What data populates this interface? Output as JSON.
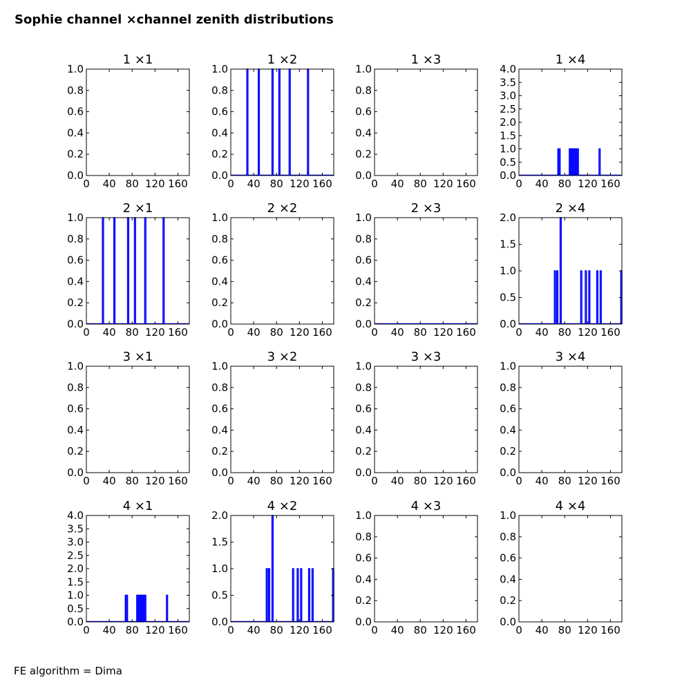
{
  "figure": {
    "title": "Sophie channel ×channel zenith distributions",
    "footer": "FE algorithm = Dima"
  },
  "colors": {
    "line": "#0000ff",
    "axes": "#000000",
    "background": "#ffffff"
  },
  "chart_data": [
    {
      "type": "bar",
      "title": "1 ×1",
      "xlim": [
        0,
        180
      ],
      "ylim": [
        0,
        1
      ],
      "xticks": [
        "0",
        "40",
        "80",
        "120",
        "160"
      ],
      "yticks": [
        "0.0",
        "0.2",
        "0.4",
        "0.6",
        "0.8",
        "1.0"
      ],
      "bars": []
    },
    {
      "type": "bar",
      "title": "1 ×2",
      "xlim": [
        0,
        180
      ],
      "ylim": [
        0,
        1
      ],
      "xticks": [
        "0",
        "40",
        "80",
        "120",
        "160"
      ],
      "yticks": [
        "0.0",
        "0.2",
        "0.4",
        "0.6",
        "0.8",
        "1.0"
      ],
      "bars": [
        {
          "x": 28,
          "y": 1
        },
        {
          "x": 48,
          "y": 1
        },
        {
          "x": 72,
          "y": 1
        },
        {
          "x": 84,
          "y": 1
        },
        {
          "x": 102,
          "y": 1
        },
        {
          "x": 134,
          "y": 1
        }
      ]
    },
    {
      "type": "bar",
      "title": "1 ×3",
      "xlim": [
        0,
        180
      ],
      "ylim": [
        0,
        1
      ],
      "xticks": [
        "0",
        "40",
        "80",
        "120",
        "160"
      ],
      "yticks": [
        "0.0",
        "0.2",
        "0.4",
        "0.6",
        "0.8",
        "1.0"
      ],
      "bars": []
    },
    {
      "type": "bar",
      "title": "1 ×4",
      "xlim": [
        0,
        180
      ],
      "ylim": [
        0,
        4
      ],
      "xticks": [
        "0",
        "40",
        "80",
        "120",
        "160"
      ],
      "yticks": [
        "0.0",
        "0.5",
        "1.0",
        "1.5",
        "2.0",
        "2.5",
        "3.0",
        "3.5",
        "4.0"
      ],
      "bars": [
        {
          "x": 68,
          "y": 1
        },
        {
          "x": 70,
          "y": 1
        },
        {
          "x": 88,
          "y": 1
        },
        {
          "x": 90,
          "y": 1
        },
        {
          "x": 92,
          "y": 1
        },
        {
          "x": 94,
          "y": 1
        },
        {
          "x": 96,
          "y": 1
        },
        {
          "x": 98,
          "y": 1
        },
        {
          "x": 100,
          "y": 1
        },
        {
          "x": 102,
          "y": 1
        },
        {
          "x": 140,
          "y": 1
        }
      ]
    },
    {
      "type": "bar",
      "title": "2 ×1",
      "xlim": [
        0,
        180
      ],
      "ylim": [
        0,
        1
      ],
      "xticks": [
        "0",
        "40",
        "80",
        "120",
        "160"
      ],
      "yticks": [
        "0.0",
        "0.2",
        "0.4",
        "0.6",
        "0.8",
        "1.0"
      ],
      "bars": [
        {
          "x": 28,
          "y": 1
        },
        {
          "x": 48,
          "y": 1
        },
        {
          "x": 72,
          "y": 1
        },
        {
          "x": 84,
          "y": 1
        },
        {
          "x": 102,
          "y": 1
        },
        {
          "x": 134,
          "y": 1
        }
      ]
    },
    {
      "type": "bar",
      "title": "2 ×2",
      "xlim": [
        0,
        180
      ],
      "ylim": [
        0,
        1
      ],
      "xticks": [
        "0",
        "40",
        "80",
        "120",
        "160"
      ],
      "yticks": [
        "0.0",
        "0.2",
        "0.4",
        "0.6",
        "0.8",
        "1.0"
      ],
      "bars": []
    },
    {
      "type": "bar",
      "title": "2 ×3",
      "xlim": [
        0,
        180
      ],
      "ylim": [
        0,
        1
      ],
      "xticks": [
        "0",
        "40",
        "80",
        "120",
        "160"
      ],
      "yticks": [
        "0.0",
        "0.2",
        "0.4",
        "0.6",
        "0.8",
        "1.0"
      ],
      "bars": []
    },
    {
      "type": "bar",
      "title": "2 ×4",
      "xlim": [
        0,
        180
      ],
      "ylim": [
        0,
        2
      ],
      "xticks": [
        "0",
        "40",
        "80",
        "120",
        "160"
      ],
      "yticks": [
        "0.0",
        "0.5",
        "1.0",
        "1.5",
        "2.0"
      ],
      "bars": [
        {
          "x": 62,
          "y": 1
        },
        {
          "x": 66,
          "y": 1
        },
        {
          "x": 72,
          "y": 2
        },
        {
          "x": 108,
          "y": 1
        },
        {
          "x": 116,
          "y": 1
        },
        {
          "x": 122,
          "y": 1
        },
        {
          "x": 136,
          "y": 1
        },
        {
          "x": 142,
          "y": 1
        },
        {
          "x": 178,
          "y": 1
        }
      ]
    },
    {
      "type": "bar",
      "title": "3 ×1",
      "xlim": [
        0,
        180
      ],
      "ylim": [
        0,
        1
      ],
      "xticks": [
        "0",
        "40",
        "80",
        "120",
        "160"
      ],
      "yticks": [
        "0.0",
        "0.2",
        "0.4",
        "0.6",
        "0.8",
        "1.0"
      ],
      "bars": []
    },
    {
      "type": "bar",
      "title": "3 ×2",
      "xlim": [
        0,
        180
      ],
      "ylim": [
        0,
        1
      ],
      "xticks": [
        "0",
        "40",
        "80",
        "120",
        "160"
      ],
      "yticks": [
        "0.0",
        "0.2",
        "0.4",
        "0.6",
        "0.8",
        "1.0"
      ],
      "bars": []
    },
    {
      "type": "bar",
      "title": "3 ×3",
      "xlim": [
        0,
        180
      ],
      "ylim": [
        0,
        1
      ],
      "xticks": [
        "0",
        "40",
        "80",
        "120",
        "160"
      ],
      "yticks": [
        "0.0",
        "0.2",
        "0.4",
        "0.6",
        "0.8",
        "1.0"
      ],
      "bars": []
    },
    {
      "type": "bar",
      "title": "3 ×4",
      "xlim": [
        0,
        180
      ],
      "ylim": [
        0,
        1
      ],
      "xticks": [
        "0",
        "40",
        "80",
        "120",
        "160"
      ],
      "yticks": [
        "0.0",
        "0.2",
        "0.4",
        "0.6",
        "0.8",
        "1.0"
      ],
      "bars": []
    },
    {
      "type": "bar",
      "title": "4 ×1",
      "xlim": [
        0,
        180
      ],
      "ylim": [
        0,
        4
      ],
      "xticks": [
        "0",
        "40",
        "80",
        "120",
        "160"
      ],
      "yticks": [
        "0.0",
        "0.5",
        "1.0",
        "1.5",
        "2.0",
        "2.5",
        "3.0",
        "3.5",
        "4.0"
      ],
      "bars": [
        {
          "x": 68,
          "y": 1
        },
        {
          "x": 70,
          "y": 1
        },
        {
          "x": 88,
          "y": 1
        },
        {
          "x": 90,
          "y": 1
        },
        {
          "x": 92,
          "y": 1
        },
        {
          "x": 94,
          "y": 1
        },
        {
          "x": 96,
          "y": 1
        },
        {
          "x": 98,
          "y": 1
        },
        {
          "x": 100,
          "y": 1
        },
        {
          "x": 102,
          "y": 1
        },
        {
          "x": 140,
          "y": 1
        }
      ]
    },
    {
      "type": "bar",
      "title": "4 ×2",
      "xlim": [
        0,
        180
      ],
      "ylim": [
        0,
        2
      ],
      "xticks": [
        "0",
        "40",
        "80",
        "120",
        "160"
      ],
      "yticks": [
        "0.0",
        "0.5",
        "1.0",
        "1.5",
        "2.0"
      ],
      "bars": [
        {
          "x": 62,
          "y": 1
        },
        {
          "x": 66,
          "y": 1
        },
        {
          "x": 72,
          "y": 2
        },
        {
          "x": 108,
          "y": 1
        },
        {
          "x": 116,
          "y": 1
        },
        {
          "x": 122,
          "y": 1
        },
        {
          "x": 136,
          "y": 1
        },
        {
          "x": 142,
          "y": 1
        },
        {
          "x": 178,
          "y": 1
        }
      ]
    },
    {
      "type": "bar",
      "title": "4 ×3",
      "xlim": [
        0,
        180
      ],
      "ylim": [
        0,
        1
      ],
      "xticks": [
        "0",
        "40",
        "80",
        "120",
        "160"
      ],
      "yticks": [
        "0.0",
        "0.2",
        "0.4",
        "0.6",
        "0.8",
        "1.0"
      ],
      "bars": []
    },
    {
      "type": "bar",
      "title": "4 ×4",
      "xlim": [
        0,
        180
      ],
      "ylim": [
        0,
        1
      ],
      "xticks": [
        "0",
        "40",
        "80",
        "120",
        "160"
      ],
      "yticks": [
        "0.0",
        "0.2",
        "0.4",
        "0.6",
        "0.8",
        "1.0"
      ],
      "bars": []
    }
  ]
}
